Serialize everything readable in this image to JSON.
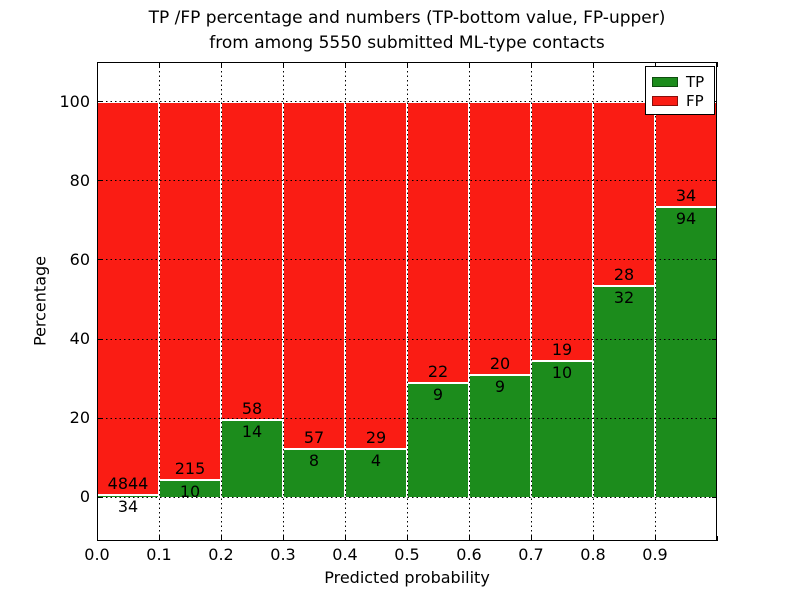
{
  "title": {
    "line1": "TP /FP percentage and numbers (TP-bottom value, FP-upper)",
    "line2": "from among 5550 submitted ML-type contacts"
  },
  "axes": {
    "xlabel": "Predicted probability",
    "ylabel": "Percentage",
    "xtick_labels": [
      "0.0",
      "0.1",
      "0.2",
      "0.3",
      "0.4",
      "0.5",
      "0.6",
      "0.7",
      "0.8",
      "0.9"
    ],
    "ytick_labels": [
      "0",
      "20",
      "40",
      "60",
      "80",
      "100"
    ]
  },
  "legend": {
    "items": [
      {
        "label": "TP",
        "color": "#1c8c1c"
      },
      {
        "label": "FP",
        "color": "#fa1c14"
      }
    ]
  },
  "chart_data": {
    "type": "bar",
    "stacked": true,
    "normalized_to_percent": true,
    "title": "TP /FP percentage and numbers (TP-bottom value, FP-upper) from among 5550 submitted ML-type contacts",
    "xlabel": "Predicted probability",
    "ylabel": "Percentage",
    "bin_edges": [
      0.0,
      0.1,
      0.2,
      0.3,
      0.4,
      0.5,
      0.6,
      0.7,
      0.8,
      0.9,
      1.0
    ],
    "xlim": [
      0.0,
      1.0
    ],
    "ylim": [
      -11,
      110
    ],
    "yticks": [
      0,
      20,
      40,
      60,
      80,
      100
    ],
    "grid": true,
    "grid_style": "dotted",
    "legend_position": "upper right",
    "bar_edge_color": "#ffffff",
    "series": [
      {
        "name": "TP",
        "color": "#1c8c1c",
        "counts": [
          34,
          10,
          14,
          8,
          4,
          9,
          9,
          10,
          32,
          94
        ]
      },
      {
        "name": "FP",
        "color": "#fa1c14",
        "counts": [
          4844,
          215,
          58,
          57,
          29,
          22,
          20,
          19,
          28,
          34
        ]
      }
    ],
    "tp_percent_of_bin": [
      0.7,
      4.44,
      19.44,
      12.31,
      12.12,
      29.03,
      31.03,
      34.48,
      53.33,
      73.44
    ],
    "total_contacts": 5550
  }
}
